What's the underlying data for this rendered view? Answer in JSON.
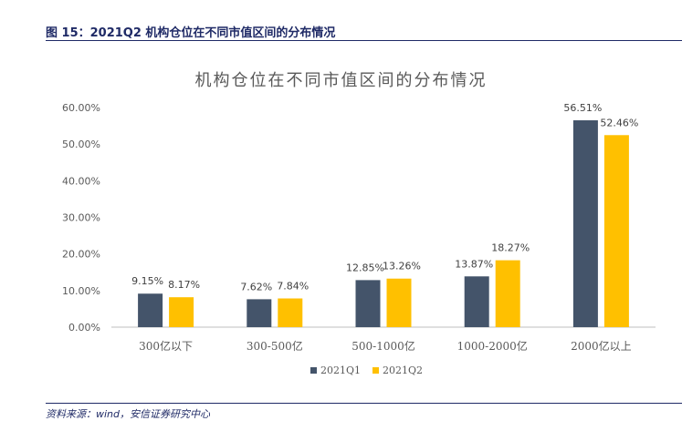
{
  "figure": {
    "caption": "图 15：2021Q2 机构仓位在不同市值区间的分布情况",
    "source": "资料来源：wind，安信证券研究中心"
  },
  "colors": {
    "q1": "#44546A",
    "q2": "#FFC000"
  },
  "chart_data": {
    "type": "bar",
    "title": "机构仓位在不同市值区间的分布情况",
    "xlabel": "",
    "ylabel": "",
    "categories": [
      "300亿以下",
      "300-500亿",
      "500-1000亿",
      "1000-2000亿",
      "2000亿以上"
    ],
    "series": [
      {
        "name": "2021Q1",
        "values": [
          9.15,
          7.62,
          12.85,
          13.87,
          56.51
        ],
        "labels": [
          "9.15%",
          "7.62%",
          "12.85%",
          "13.87%",
          "56.51%"
        ]
      },
      {
        "name": "2021Q2",
        "values": [
          8.17,
          7.84,
          13.26,
          18.27,
          52.46
        ],
        "labels": [
          "8.17%",
          "7.84%",
          "13.26%",
          "18.27%",
          "52.46%"
        ]
      }
    ],
    "ylim": [
      0,
      60
    ],
    "yticks": [
      "0.00%",
      "10.00%",
      "20.00%",
      "30.00%",
      "40.00%",
      "50.00%",
      "60.00%"
    ],
    "grid": false,
    "legend": "bottom"
  }
}
